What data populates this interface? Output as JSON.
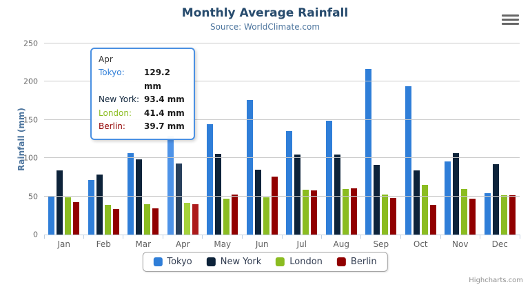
{
  "title": "Monthly Average Rainfall",
  "subtitle": "Source: WorldClimate.com",
  "credits": "Highcharts.com",
  "yaxis": {
    "title": "Rainfall (mm)",
    "tick_step": 50
  },
  "chart_data": {
    "type": "bar",
    "subtype": "grouped-vertical-columns",
    "title": "Monthly Average Rainfall",
    "xlabel": "",
    "ylabel": "Rainfall (mm)",
    "ylim": [
      0,
      250
    ],
    "grid": true,
    "legend_position": "bottom",
    "categories": [
      "Jan",
      "Feb",
      "Mar",
      "Apr",
      "May",
      "Jun",
      "Jul",
      "Aug",
      "Sep",
      "Oct",
      "Nov",
      "Dec"
    ],
    "highlighted_category": "Apr",
    "series": [
      {
        "name": "Tokyo",
        "color": "#2f7ed8",
        "hover_color": "#4e93e8",
        "values": [
          49.9,
          71.5,
          106.4,
          129.2,
          144.0,
          176.0,
          135.6,
          148.5,
          216.4,
          194.1,
          95.6,
          54.4
        ]
      },
      {
        "name": "New York",
        "color": "#0d233a",
        "hover_color": "#28405c",
        "values": [
          83.6,
          78.8,
          98.5,
          93.4,
          106.0,
          84.5,
          105.0,
          104.3,
          91.2,
          83.5,
          106.6,
          92.3
        ]
      },
      {
        "name": "London",
        "color": "#8bbc21",
        "hover_color": "#a6d33b",
        "values": [
          48.9,
          38.8,
          39.3,
          41.4,
          47.0,
          48.3,
          59.0,
          59.6,
          52.4,
          65.2,
          59.3,
          51.2
        ]
      },
      {
        "name": "Berlin",
        "color": "#910000",
        "hover_color": "#ad1a1a",
        "values": [
          42.4,
          33.2,
          34.5,
          39.7,
          52.6,
          75.5,
          57.4,
          60.4,
          47.6,
          39.1,
          46.8,
          51.1
        ]
      }
    ]
  },
  "tooltip": {
    "header": "Apr",
    "rows": [
      {
        "label": "Tokyo:",
        "value": "129.2 mm",
        "color": "#2f7ed8"
      },
      {
        "label": "New York:",
        "value": "93.4 mm",
        "color": "#0d233a"
      },
      {
        "label": "London:",
        "value": "41.4 mm",
        "color": "#8bbc21"
      },
      {
        "label": "Berlin:",
        "value": "39.7 mm",
        "color": "#910000"
      }
    ]
  }
}
